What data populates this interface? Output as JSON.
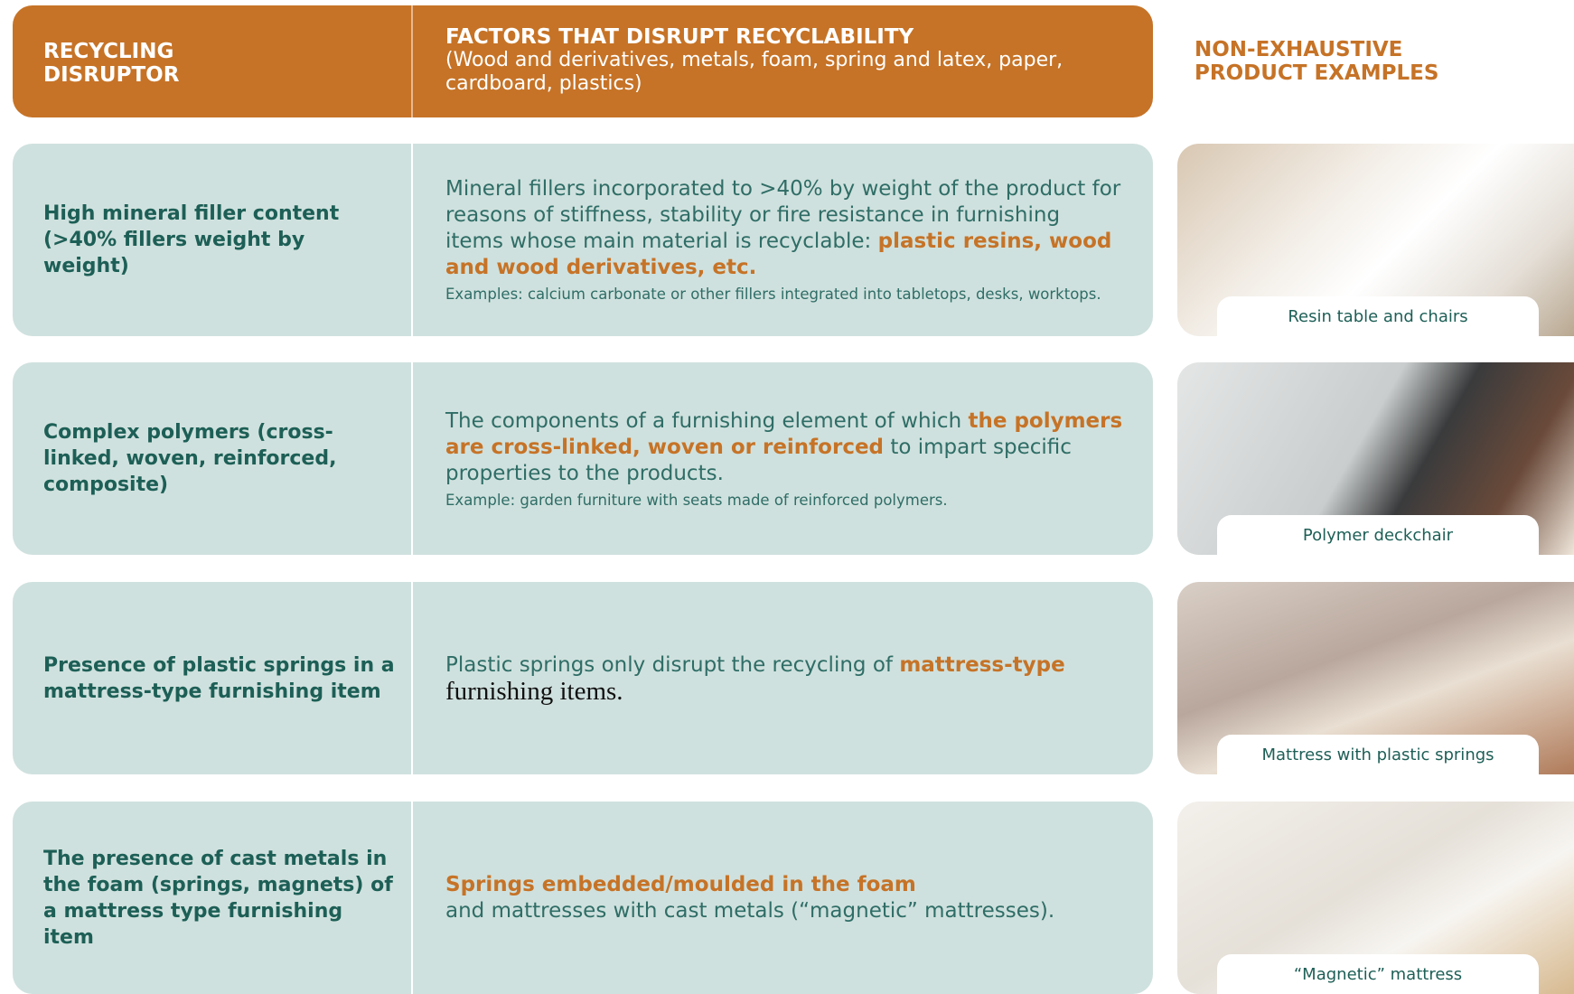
{
  "header": {
    "disruptor": "RECYCLING DISRUPTOR",
    "factors_title": "FACTORS THAT DISRUPT RECYCLABILITY",
    "factors_subtitle": "(Wood and derivatives, metals, foam, spring and latex, paper, cardboard, plastics)",
    "examples": "NON-EXHAUSTIVE PRODUCT EXAMPLES"
  },
  "rows": [
    {
      "disruptor": "High mineral filler content (>40% fillers weight by weight)",
      "description": [
        {
          "text": "Mineral fillers incorporated to >40% by weight of the product for reasons of stiffness, stability or fire resistance in furnishing items whose main material is recyclable: ",
          "style": "normal"
        },
        {
          "text": "plastic resins, wood and wood derivatives, etc.",
          "style": "highlight"
        }
      ],
      "note": "Examples: calcium carbonate or other fillers integrated into tabletops, desks, worktops.",
      "caption": "Resin table and chairs"
    },
    {
      "disruptor": "Complex polymers (cross-linked, woven, reinforced, composite)",
      "description": [
        {
          "text": "The components of a furnishing element of which ",
          "style": "normal"
        },
        {
          "text": "the polymers are cross-linked, woven or reinforced",
          "style": "highlight"
        },
        {
          "text": " to impart specific properties to the products.",
          "style": "normal"
        }
      ],
      "note": "Example: garden furniture with seats made of reinforced polymers.",
      "caption": "Polymer deckchair"
    },
    {
      "disruptor": "Presence of plastic springs in a mattress-type furnishing item",
      "description": [
        {
          "text": "Plastic springs only disrupt the recycling of ",
          "style": "normal"
        },
        {
          "text": "mattress-type",
          "style": "highlight"
        },
        {
          "text": " furnishing items.",
          "style": "serif"
        }
      ],
      "caption": "Mattress with plastic springs"
    },
    {
      "disruptor": "The presence of cast metals in the foam (springs, magnets) of a mattress type furnishing item",
      "description": [
        {
          "text": "Springs embedded/moulded in the foam",
          "style": "highlight-line"
        },
        {
          "text": "and mattresses with cast metals (“magnetic” mattresses).",
          "style": "normal"
        }
      ],
      "caption": "“Magnetic” mattress"
    }
  ]
}
